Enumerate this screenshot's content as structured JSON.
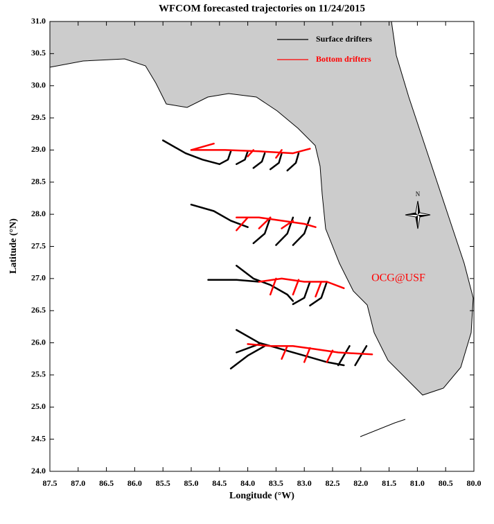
{
  "chart_data": {
    "type": "trajectory",
    "title": "WFCOM forecasted trajectories on 11/24/2015",
    "x_label": "Longitude (°W)",
    "y_label": "Latitude (°N)",
    "annotation": "OCG@USF",
    "annotation_color": "#ff0000",
    "compass_label": "N",
    "land_color": "#cccccc",
    "xlim": [
      87.5,
      80.0
    ],
    "ylim": [
      24.0,
      31.0
    ],
    "xticks": [
      87.5,
      {
        "value": 87,
        "label": "87.0"
      },
      86.5,
      {
        "value": 86,
        "label": "86.0"
      },
      85.5,
      {
        "value": 85,
        "label": "85.0"
      },
      84.5,
      {
        "value": 84,
        "label": "84.0"
      },
      83.5,
      {
        "value": 83,
        "label": "83.0"
      },
      82.5,
      {
        "value": 82,
        "label": "82.0"
      },
      81.5,
      {
        "value": 81,
        "label": "81.0"
      },
      80.5,
      {
        "value": 80,
        "label": "80.0"
      }
    ],
    "yticks": [
      {
        "value": 24,
        "label": "24.0"
      },
      24.5,
      {
        "value": 25,
        "label": "25.0"
      },
      25.5,
      {
        "value": 26,
        "label": "26.0"
      },
      26.5,
      {
        "value": 27,
        "label": "27.0"
      },
      27.5,
      {
        "value": 28,
        "label": "28.0"
      },
      28.5,
      {
        "value": 29,
        "label": "29.0"
      },
      29.5,
      {
        "value": 30,
        "label": "30.0"
      },
      30.5,
      {
        "value": 31,
        "label": "31.0"
      }
    ],
    "series": [
      {
        "name": "Surface drifters",
        "color": "#000000",
        "tracks": [
          {
            "x": [
              85.5,
              85.1,
              84.8,
              84.5
            ],
            "y": [
              29.15,
              28.95,
              28.85,
              28.78
            ]
          },
          {
            "x": [
              84.3,
              84.35,
              84.5
            ],
            "y": [
              28.98,
              28.85,
              28.78
            ]
          },
          {
            "x": [
              84.0,
              84.05,
              84.2
            ],
            "y": [
              28.98,
              28.85,
              28.78
            ]
          },
          {
            "x": [
              83.7,
              83.75,
              83.9
            ],
            "y": [
              28.95,
              28.82,
              28.72
            ]
          },
          {
            "x": [
              83.4,
              83.45,
              83.6
            ],
            "y": [
              28.95,
              28.8,
              28.7
            ]
          },
          {
            "x": [
              83.1,
              83.15,
              83.3
            ],
            "y": [
              28.95,
              28.8,
              28.68
            ]
          },
          {
            "x": [
              85.0,
              84.6,
              84.3,
              84.0
            ],
            "y": [
              28.15,
              28.05,
              27.9,
              27.8
            ]
          },
          {
            "x": [
              83.6,
              83.7,
              83.9
            ],
            "y": [
              27.95,
              27.7,
              27.55
            ]
          },
          {
            "x": [
              83.2,
              83.3,
              83.5
            ],
            "y": [
              27.95,
              27.7,
              27.52
            ]
          },
          {
            "x": [
              82.9,
              83.0,
              83.2
            ],
            "y": [
              27.95,
              27.7,
              27.52
            ]
          },
          {
            "x": [
              84.2,
              83.9,
              83.6,
              83.3,
              83.2
            ],
            "y": [
              27.2,
              27.0,
              26.9,
              26.75,
              26.65
            ]
          },
          {
            "x": [
              84.7,
              84.2,
              83.8
            ],
            "y": [
              26.98,
              26.98,
              26.95
            ]
          },
          {
            "x": [
              82.9,
              83.0,
              83.2
            ],
            "y": [
              26.95,
              26.7,
              26.6
            ]
          },
          {
            "x": [
              82.6,
              82.7,
              82.9
            ],
            "y": [
              26.95,
              26.7,
              26.58
            ]
          },
          {
            "x": [
              84.2,
              83.8,
              83.4,
              83.0,
              82.6,
              82.3
            ],
            "y": [
              26.2,
              26.0,
              25.9,
              25.8,
              25.7,
              25.65
            ]
          },
          {
            "x": [
              84.3,
              84.0,
              83.7
            ],
            "y": [
              25.6,
              25.8,
              25.95
            ]
          },
          {
            "x": [
              84.2,
              83.8
            ],
            "y": [
              25.85,
              25.98
            ]
          },
          {
            "x": [
              82.2,
              82.3,
              82.4
            ],
            "y": [
              25.95,
              25.8,
              25.65
            ]
          },
          {
            "x": [
              81.9,
              82.0,
              82.1
            ],
            "y": [
              25.95,
              25.8,
              25.65
            ]
          }
        ]
      },
      {
        "name": "Bottom drifters",
        "color": "#ff0000",
        "tracks": [
          {
            "x": [
              85.0,
              84.4,
              83.8,
              83.2,
              82.9
            ],
            "y": [
              29.0,
              29.0,
              28.98,
              28.95,
              29.02
            ]
          },
          {
            "x": [
              85.0,
              84.6
            ],
            "y": [
              29.0,
              29.1
            ]
          },
          {
            "x": [
              83.9,
              84.0
            ],
            "y": [
              29.0,
              28.9
            ]
          },
          {
            "x": [
              83.4,
              83.5
            ],
            "y": [
              29.0,
              28.88
            ]
          },
          {
            "x": [
              84.2,
              83.8,
              83.4,
              83.0,
              82.8
            ],
            "y": [
              27.95,
              27.95,
              27.9,
              27.85,
              27.8
            ]
          },
          {
            "x": [
              84.0,
              84.2
            ],
            "y": [
              27.95,
              27.75
            ]
          },
          {
            "x": [
              83.6,
              83.8
            ],
            "y": [
              27.95,
              27.78
            ]
          },
          {
            "x": [
              83.2,
              83.4
            ],
            "y": [
              27.9,
              27.78
            ]
          },
          {
            "x": [
              83.8,
              83.4,
              83.0,
              82.6,
              82.3
            ],
            "y": [
              26.95,
              27.0,
              26.95,
              26.95,
              26.85
            ]
          },
          {
            "x": [
              83.5,
              83.6
            ],
            "y": [
              27.0,
              26.75
            ]
          },
          {
            "x": [
              83.1,
              83.2
            ],
            "y": [
              26.98,
              26.75
            ]
          },
          {
            "x": [
              82.7,
              82.8
            ],
            "y": [
              26.95,
              26.72
            ]
          },
          {
            "x": [
              84.0,
              83.6,
              83.2,
              82.8,
              82.4,
              81.8
            ],
            "y": [
              25.98,
              25.95,
              25.95,
              25.9,
              25.85,
              25.82
            ]
          },
          {
            "x": [
              83.3,
              83.4
            ],
            "y": [
              25.95,
              25.75
            ]
          },
          {
            "x": [
              82.9,
              83.0
            ],
            "y": [
              25.92,
              25.7
            ]
          },
          {
            "x": [
              82.5,
              82.6
            ],
            "y": [
              25.88,
              25.7
            ]
          }
        ]
      }
    ]
  }
}
